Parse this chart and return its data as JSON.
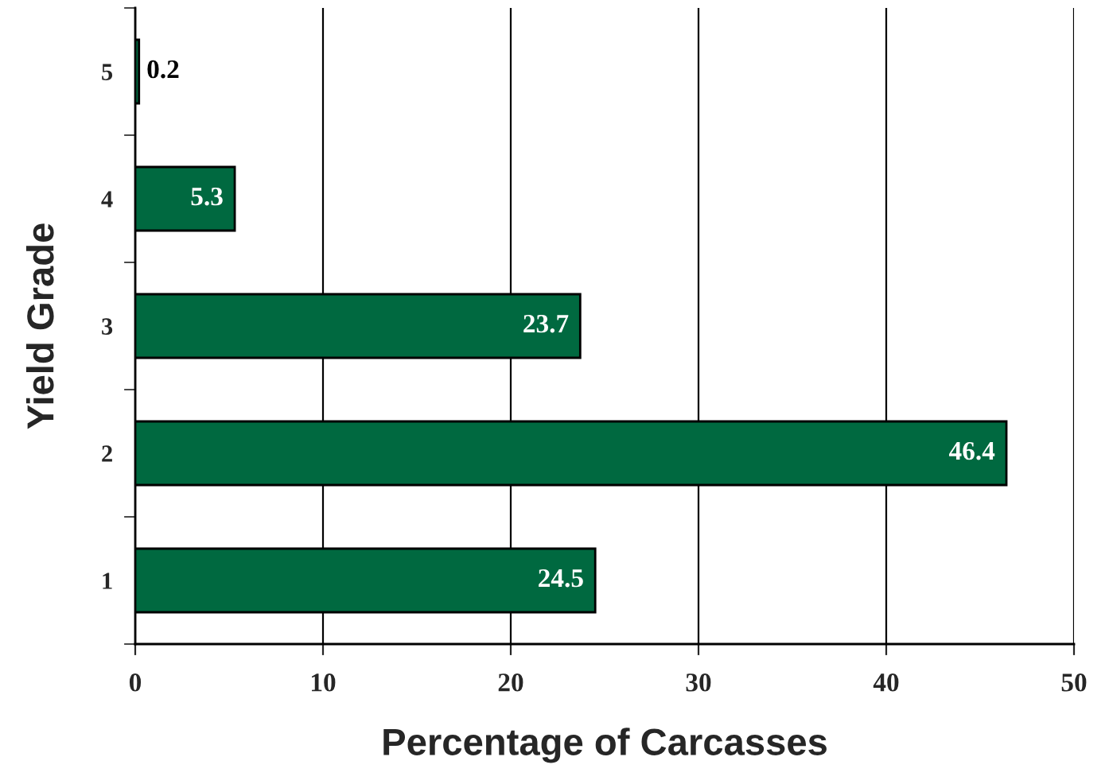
{
  "chart_data": {
    "type": "bar",
    "orientation": "horizontal",
    "xlabel": "Percentage of Carcasses",
    "ylabel": "Yield Grade",
    "categories": [
      "5",
      "4",
      "3",
      "2",
      "1"
    ],
    "values": [
      0.2,
      5.3,
      23.7,
      46.4,
      24.5
    ],
    "color": "#006940",
    "xlim": [
      0,
      50
    ],
    "xticks": [
      0,
      10,
      20,
      30,
      40,
      50
    ],
    "grid": "x",
    "data_labels": true
  }
}
